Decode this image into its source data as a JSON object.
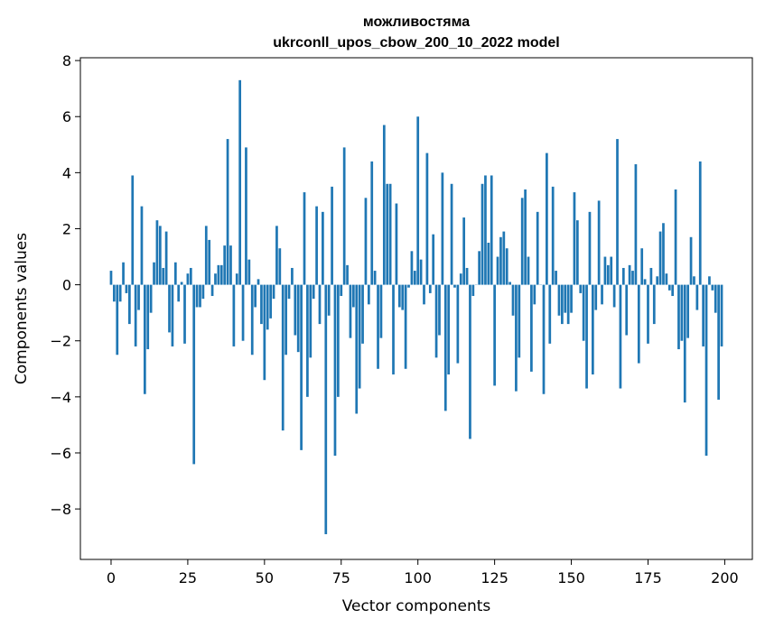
{
  "chart_data": {
    "type": "bar",
    "title": "можливостяма",
    "subtitle": "ukrconll_upos_cbow_200_10_2022 model",
    "xlabel": "Vector components",
    "ylabel": "Components values",
    "xlim": [
      -10,
      209
    ],
    "ylim": [
      -9.8,
      8.1
    ],
    "x_ticks": [
      0,
      25,
      50,
      75,
      100,
      125,
      150,
      175,
      200
    ],
    "x_tick_labels": [
      "0",
      "25",
      "50",
      "75",
      "100",
      "125",
      "150",
      "175",
      "200"
    ],
    "y_ticks": [
      -8,
      -6,
      -4,
      -2,
      0,
      2,
      4,
      6,
      8
    ],
    "y_tick_labels": [
      "−8",
      "−6",
      "−4",
      "−2",
      "0",
      "2",
      "4",
      "6",
      "8"
    ],
    "bar_color": "#1f77b4",
    "grid": false,
    "values": [
      0.5,
      -0.6,
      -2.5,
      -0.6,
      0.8,
      -0.3,
      -1.4,
      3.9,
      -2.2,
      -0.9,
      2.8,
      -3.9,
      -2.3,
      -1.0,
      0.8,
      2.3,
      2.1,
      0.6,
      1.9,
      -1.7,
      -2.2,
      0.8,
      -0.6,
      0.1,
      -2.1,
      0.4,
      0.6,
      -6.4,
      -0.8,
      -0.8,
      -0.5,
      2.1,
      1.6,
      -0.4,
      0.4,
      0.7,
      0.7,
      1.4,
      5.2,
      1.4,
      -2.2,
      0.4,
      7.3,
      -2.0,
      4.9,
      0.9,
      -2.5,
      -0.8,
      0.2,
      -1.4,
      -3.4,
      -1.6,
      -1.2,
      -0.5,
      2.1,
      1.3,
      -5.2,
      -2.5,
      -0.5,
      0.6,
      -1.8,
      -2.4,
      -5.9,
      3.3,
      -4.0,
      -2.6,
      -0.5,
      2.8,
      -1.4,
      2.6,
      -8.9,
      -1.1,
      3.5,
      -6.1,
      -4.0,
      -0.4,
      4.9,
      0.7,
      -1.9,
      -0.8,
      -4.6,
      -3.7,
      -2.1,
      3.1,
      -0.7,
      4.4,
      0.5,
      -3.0,
      -1.9,
      5.7,
      3.6,
      3.6,
      -3.2,
      2.9,
      -0.8,
      -0.9,
      -3.0,
      -0.1,
      1.2,
      0.5,
      6.0,
      0.9,
      -0.7,
      4.7,
      -0.3,
      1.8,
      -2.6,
      -1.8,
      4.0,
      -4.5,
      -3.2,
      3.6,
      -0.1,
      -2.8,
      0.4,
      2.4,
      0.6,
      -5.5,
      -0.4,
      0.0,
      1.2,
      3.6,
      3.9,
      1.5,
      3.9,
      -3.6,
      1.0,
      1.7,
      1.9,
      1.3,
      0.1,
      -1.1,
      -3.8,
      -2.6,
      3.1,
      3.4,
      1.0,
      -3.1,
      -0.7,
      2.6,
      0.0,
      -3.9,
      4.7,
      -2.1,
      3.5,
      0.5,
      -1.1,
      -1.4,
      -1.0,
      -1.4,
      -1.0,
      3.3,
      2.3,
      -0.3,
      -2.0,
      -3.7,
      2.6,
      -3.2,
      -0.9,
      3.0,
      -0.7,
      1.0,
      0.7,
      1.0,
      -0.8,
      5.2,
      -3.7,
      0.6,
      -1.8,
      0.7,
      0.5,
      4.3,
      -2.8,
      1.3,
      0.2,
      -2.1,
      0.6,
      -1.4,
      0.3,
      1.9,
      2.2,
      0.4,
      -0.2,
      -0.4,
      3.4,
      -2.3,
      -2.0,
      -4.2,
      -1.9,
      1.7,
      0.3,
      -0.9,
      4.4,
      -2.2,
      -6.1,
      0.3,
      -0.2,
      -1.0,
      -4.1,
      -2.2
    ]
  }
}
